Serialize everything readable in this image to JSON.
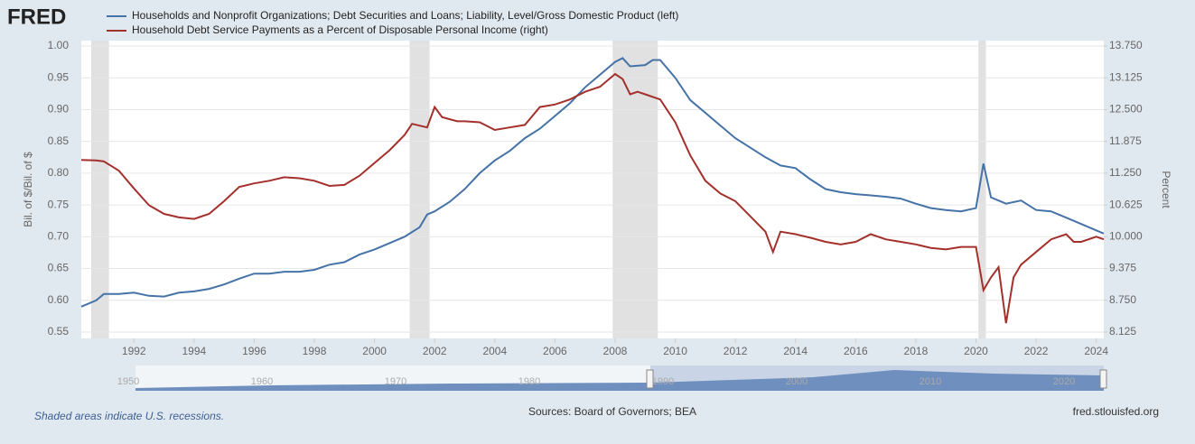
{
  "chart_data": {
    "type": "line",
    "logo": "FRED",
    "y_label": "Bil. of $/Bil. of $",
    "y2_label": "Percent",
    "note": "Shaded areas indicate U.S. recessions.",
    "source": "Sources: Board of Governors; BEA",
    "site": "fred.stlouisfed.org",
    "xlim": [
      1990.25,
      2024.25
    ],
    "xticks": [
      1992,
      1994,
      1996,
      1998,
      2000,
      2002,
      2004,
      2006,
      2008,
      2010,
      2012,
      2014,
      2016,
      2018,
      2020,
      2022,
      2024
    ],
    "ylim": [
      0.55,
      1.0
    ],
    "yticks": [
      0.55,
      {
        "value": 0.6,
        "label": "0.60"
      },
      0.65,
      {
        "value": 0.7,
        "label": "0.70"
      },
      0.75,
      {
        "value": 0.8,
        "label": "0.80"
      },
      0.85,
      {
        "value": 0.9,
        "label": "0.90"
      },
      0.95,
      {
        "value": 1.0,
        "label": "1.00"
      }
    ],
    "y2lim": [
      8.125,
      13.75
    ],
    "y2ticks": [
      {
        "value": 8.125,
        "label": "8.125"
      },
      {
        "value": 8.75,
        "label": "8.750"
      },
      {
        "value": 9.375,
        "label": "9.375"
      },
      {
        "value": 10.0,
        "label": "10.000"
      },
      {
        "value": 10.625,
        "label": "10.625"
      },
      {
        "value": 11.25,
        "label": "11.250"
      },
      {
        "value": 11.875,
        "label": "11.875"
      },
      {
        "value": 12.5,
        "label": "12.500"
      },
      {
        "value": 13.125,
        "label": "13.125"
      },
      {
        "value": 13.75,
        "label": "13.750"
      }
    ],
    "grid": true,
    "recessions": [
      [
        1990.58,
        1991.17
      ],
      [
        2001.17,
        2001.83
      ],
      [
        2007.92,
        2009.42
      ],
      [
        2020.08,
        2020.33
      ]
    ],
    "navigator_labels": [
      1950,
      1960,
      1970,
      1980,
      1990,
      2000,
      2010,
      2020
    ],
    "series": [
      {
        "name": "Households and Nonprofit Organizations; Debt Securities and Loans; Liability, Level/Gross Domestic Product (left)",
        "color": "#4572a7",
        "axis": "y",
        "x": [
          1990.25,
          1990.75,
          1991,
          1991.5,
          1992,
          1992.5,
          1993,
          1993.5,
          1994,
          1994.5,
          1995,
          1995.5,
          1996,
          1996.5,
          1997,
          1997.5,
          1998,
          1998.5,
          1999,
          1999.5,
          2000,
          2000.5,
          2001,
          2001.5,
          2001.75,
          2002,
          2002.5,
          2003,
          2003.5,
          2004,
          2004.5,
          2005,
          2005.5,
          2006,
          2006.5,
          2007,
          2007.5,
          2008,
          2008.25,
          2008.5,
          2009,
          2009.25,
          2009.5,
          2010,
          2010.5,
          2011,
          2011.5,
          2012,
          2012.5,
          2013,
          2013.5,
          2014,
          2014.5,
          2015,
          2015.5,
          2016,
          2016.5,
          2017,
          2017.5,
          2018,
          2018.5,
          2019,
          2019.5,
          2020,
          2020.25,
          2020.5,
          2021,
          2021.5,
          2022,
          2022.5,
          2023,
          2023.5,
          2024,
          2024.25
        ],
        "values": [
          0.59,
          0.6,
          0.61,
          0.61,
          0.612,
          0.607,
          0.606,
          0.612,
          0.614,
          0.618,
          0.625,
          0.634,
          0.642,
          0.642,
          0.645,
          0.645,
          0.648,
          0.656,
          0.66,
          0.672,
          0.68,
          0.69,
          0.7,
          0.715,
          0.735,
          0.74,
          0.755,
          0.775,
          0.8,
          0.82,
          0.835,
          0.855,
          0.87,
          0.89,
          0.91,
          0.935,
          0.955,
          0.975,
          0.981,
          0.968,
          0.97,
          0.978,
          0.978,
          0.95,
          0.915,
          0.895,
          0.875,
          0.855,
          0.84,
          0.825,
          0.812,
          0.808,
          0.79,
          0.775,
          0.77,
          0.767,
          0.765,
          0.763,
          0.76,
          0.752,
          0.745,
          0.742,
          0.74,
          0.745,
          0.815,
          0.762,
          0.752,
          0.757,
          0.742,
          0.74,
          0.73,
          0.72,
          0.71,
          0.705
        ]
      },
      {
        "name": "Household Debt Service Payments as a Percent of Disposable Personal Income (right)",
        "color": "#a4302b",
        "axis": "y2",
        "x": [
          1990.25,
          1990.75,
          1991,
          1991.5,
          1992,
          1992.5,
          1993,
          1993.5,
          1994,
          1994.5,
          1995,
          1995.5,
          1996,
          1996.5,
          1997,
          1997.5,
          1998,
          1998.5,
          1999,
          1999.5,
          2000,
          2000.5,
          2001,
          2001.25,
          2001.75,
          2002,
          2002.25,
          2002.75,
          2003,
          2003.5,
          2004,
          2004.5,
          2005,
          2005.5,
          2006,
          2006.5,
          2007,
          2007.5,
          2008,
          2008.25,
          2008.5,
          2008.75,
          2009,
          2009.5,
          2010,
          2010.5,
          2011,
          2011.5,
          2012,
          2012.5,
          2013,
          2013.25,
          2013.5,
          2014,
          2014.5,
          2015,
          2015.5,
          2016,
          2016.5,
          2017,
          2017.5,
          2018,
          2018.5,
          2019,
          2019.5,
          2020,
          2020.25,
          2020.5,
          2020.75,
          2021,
          2021.25,
          2021.5,
          2022,
          2022.5,
          2023,
          2023.25,
          2023.5,
          2024,
          2024.25
        ],
        "values": [
          11.51,
          11.5,
          11.48,
          11.3,
          10.95,
          10.62,
          10.45,
          10.38,
          10.35,
          10.45,
          10.7,
          10.98,
          11.05,
          11.1,
          11.17,
          11.15,
          11.1,
          11.0,
          11.02,
          11.2,
          11.45,
          11.7,
          12.0,
          12.22,
          12.15,
          12.55,
          12.35,
          12.27,
          12.27,
          12.25,
          12.1,
          12.15,
          12.2,
          12.55,
          12.6,
          12.7,
          12.85,
          12.95,
          13.2,
          13.1,
          12.8,
          12.85,
          12.8,
          12.7,
          12.25,
          11.6,
          11.1,
          10.85,
          10.7,
          10.4,
          10.1,
          9.7,
          10.1,
          10.05,
          9.98,
          9.9,
          9.85,
          9.9,
          10.05,
          9.95,
          9.9,
          9.85,
          9.78,
          9.75,
          9.8,
          9.8,
          8.95,
          9.2,
          9.4,
          8.3,
          9.2,
          9.45,
          9.7,
          9.95,
          10.05,
          9.9,
          9.9,
          10.0,
          9.95
        ]
      }
    ]
  }
}
